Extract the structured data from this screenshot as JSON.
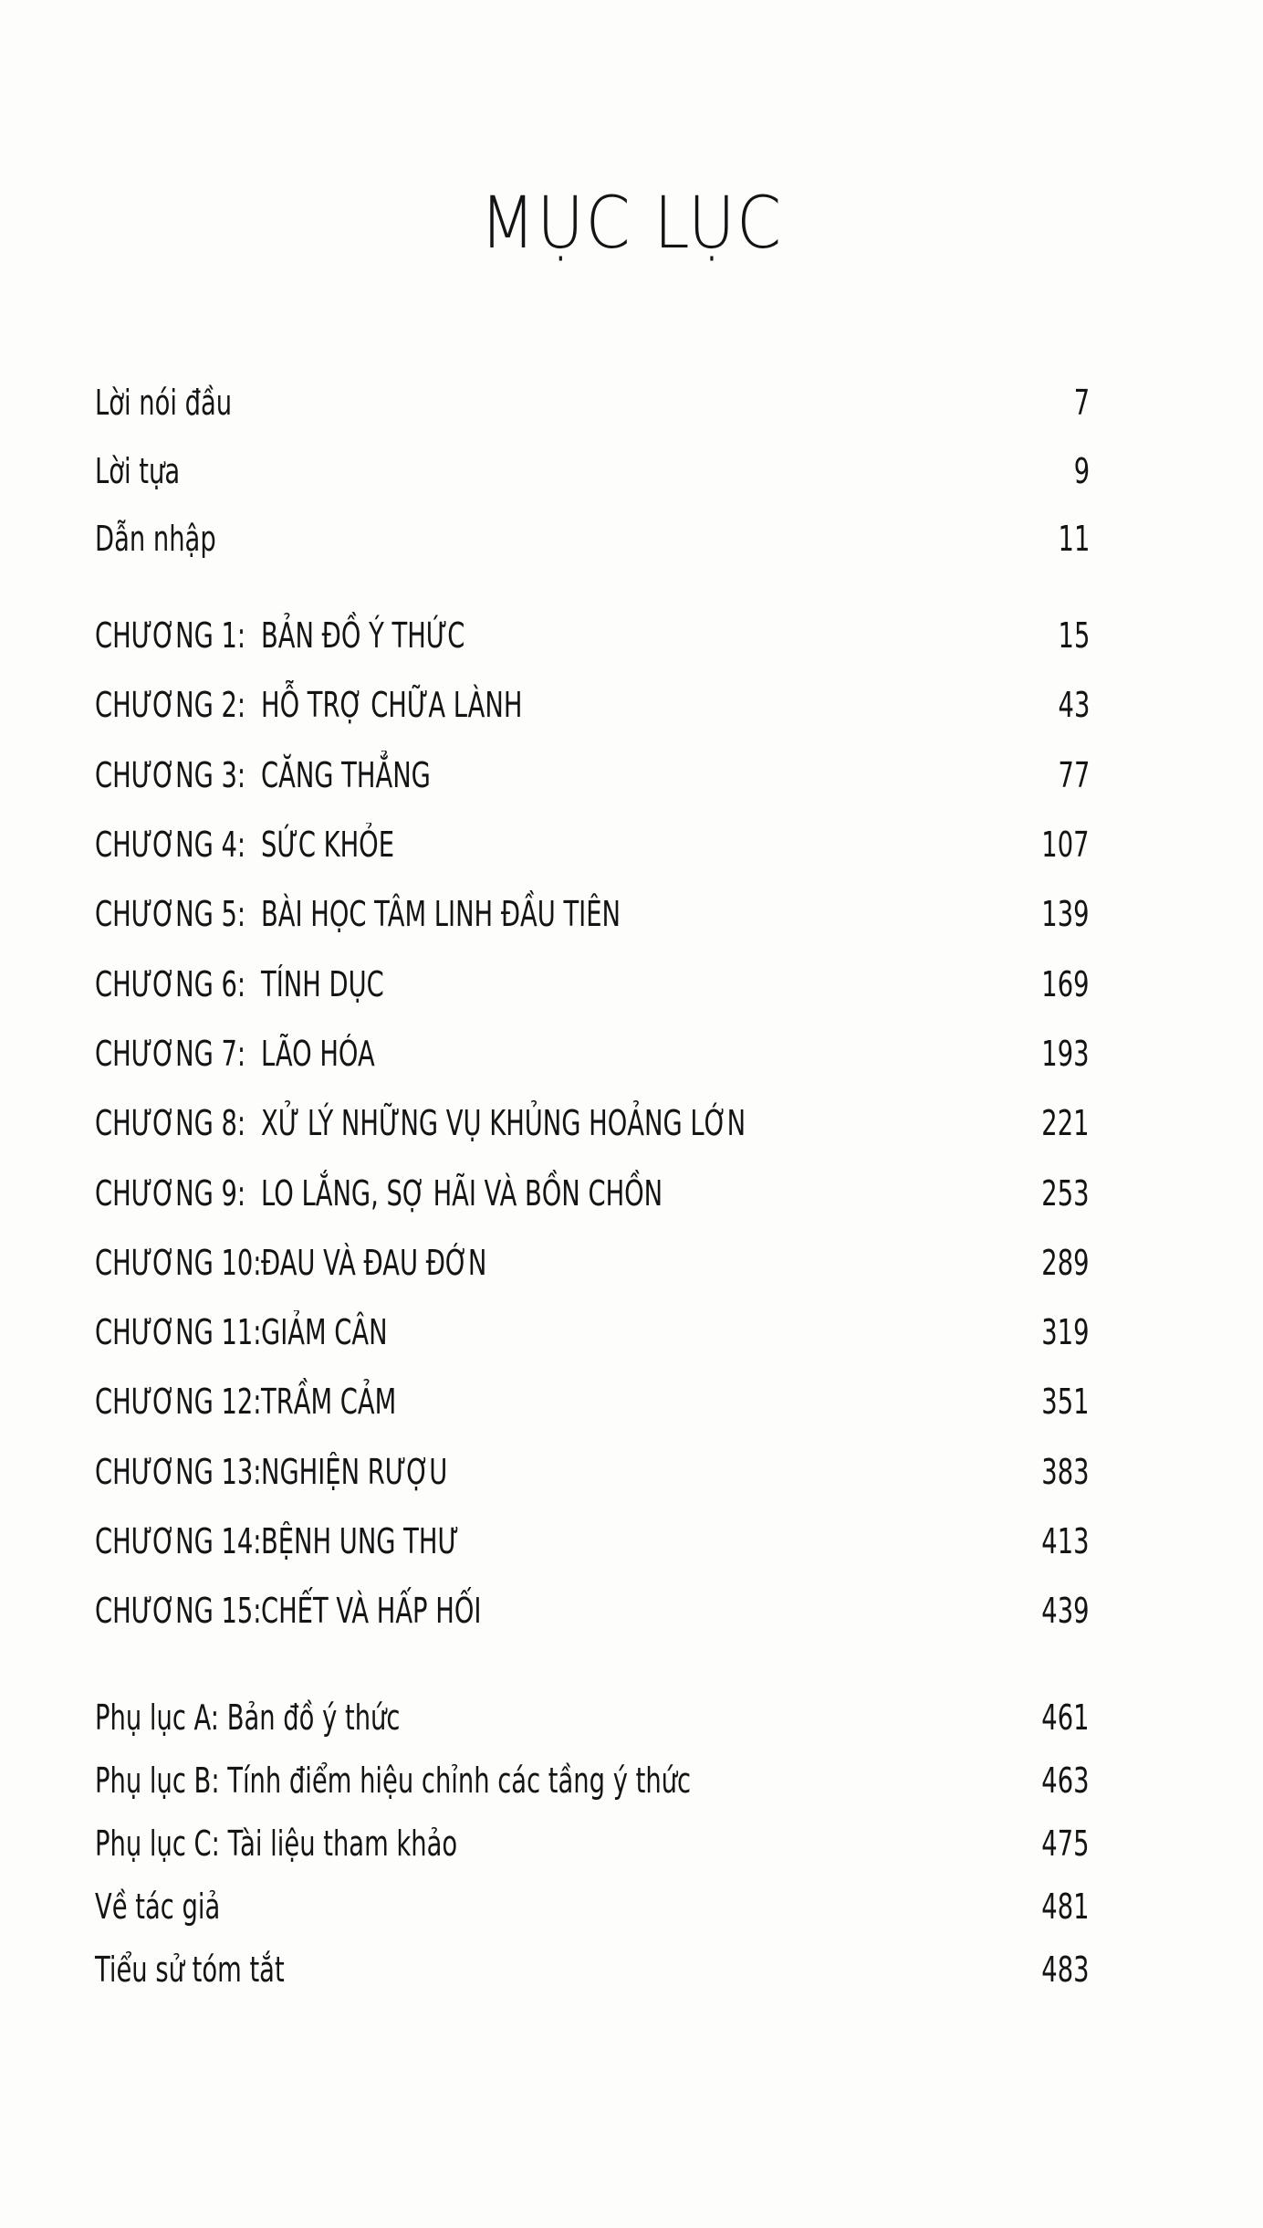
{
  "title": "MỤC LỤC",
  "front_matter": [
    {
      "label": "Lời nói đầu",
      "page": "7"
    },
    {
      "label": "Lời tựa",
      "page": "9"
    },
    {
      "label": "Dẫn nhập",
      "page": "11"
    }
  ],
  "chapters": [
    {
      "label": "CHƯƠNG 1:",
      "title": "BẢN ĐỒ Ý THỨC",
      "page": "15"
    },
    {
      "label": "CHƯƠNG 2:",
      "title": "HỖ TRỢ CHỮA LÀNH",
      "page": "43"
    },
    {
      "label": "CHƯƠNG 3:",
      "title": "CĂNG THẲNG",
      "page": "77"
    },
    {
      "label": "CHƯƠNG 4:",
      "title": "SỨC KHỎE",
      "page": "107"
    },
    {
      "label": "CHƯƠNG 5:",
      "title": "BÀI HỌC TÂM LINH ĐẦU TIÊN",
      "page": "139"
    },
    {
      "label": "CHƯƠNG 6:",
      "title": "TÍNH DỤC",
      "page": "169"
    },
    {
      "label": "CHƯƠNG 7:",
      "title": "LÃO HÓA",
      "page": "193"
    },
    {
      "label": "CHƯƠNG 8:",
      "title": "XỬ LÝ NHỮNG VỤ KHỦNG HOẢNG LỚN",
      "page": "221"
    },
    {
      "label": "CHƯƠNG 9:",
      "title": "LO LẮNG, SỢ HÃI VÀ BỒN CHỒN",
      "page": "253"
    },
    {
      "label": "CHƯƠNG 10:",
      "title": "ĐAU VÀ ĐAU ĐỚN",
      "page": "289"
    },
    {
      "label": "CHƯƠNG 11:",
      "title": "GIẢM CÂN",
      "page": "319"
    },
    {
      "label": "CHƯƠNG 12:",
      "title": "TRẦM CẢM",
      "page": "351"
    },
    {
      "label": "CHƯƠNG 13:",
      "title": "NGHIỆN RƯỢU",
      "page": "383"
    },
    {
      "label": "CHƯƠNG 14:",
      "title": "BỆNH UNG THƯ",
      "page": "413"
    },
    {
      "label": "CHƯƠNG 15:",
      "title": "CHẾT VÀ HẤP HỐI",
      "page": "439"
    }
  ],
  "back_matter": [
    {
      "label": "Phụ lục A: Bản đồ ý thức",
      "page": "461"
    },
    {
      "label": "Phụ lục B: Tính điểm hiệu chỉnh các tầng ý thức",
      "page": "463"
    },
    {
      "label": "Phụ lục C: Tài liệu tham khảo",
      "page": "475"
    },
    {
      "label": "Về tác giả",
      "page": "481"
    },
    {
      "label": "Tiểu sử tóm tắt",
      "page": "483"
    }
  ]
}
